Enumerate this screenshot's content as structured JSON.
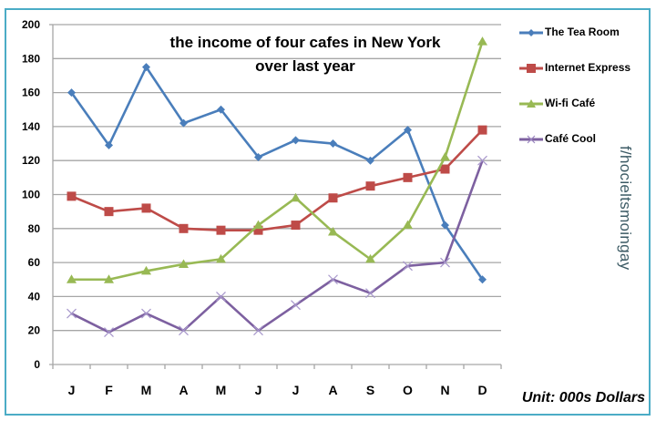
{
  "chart_data": {
    "type": "line",
    "title": "the income of four cafes in New York over last year",
    "title_lines": [
      "the income of four cafes in New York",
      "over last year"
    ],
    "categories": [
      "J",
      "F",
      "M",
      "A",
      "M",
      "J",
      "J",
      "A",
      "S",
      "O",
      "N",
      "D"
    ],
    "xlabel": "",
    "ylabel": "",
    "unit_note": "Unit: 000s Dollars",
    "ylim": [
      0,
      200
    ],
    "yticks": [
      0,
      20,
      40,
      60,
      80,
      100,
      120,
      140,
      160,
      180,
      200
    ],
    "grid": true,
    "legend_position": "right",
    "series": [
      {
        "name": "The Tea Room",
        "color": "#4A7EBB",
        "marker": "diamond",
        "values": [
          160,
          129,
          175,
          142,
          150,
          122,
          132,
          130,
          120,
          138,
          82,
          50
        ]
      },
      {
        "name": "Internet Express",
        "color": "#BE4B48",
        "marker": "square",
        "values": [
          99,
          90,
          92,
          80,
          79,
          79,
          82,
          98,
          105,
          110,
          115,
          138
        ]
      },
      {
        "name": "Wi-fi Café",
        "color": "#98B954",
        "marker": "triangle",
        "values": [
          50,
          50,
          55,
          59,
          62,
          82,
          98,
          78,
          62,
          82,
          122,
          190
        ]
      },
      {
        "name": "Café Cool",
        "color": "#7D60A0",
        "marker": "x",
        "values": [
          30,
          19,
          30,
          20,
          40,
          20,
          35,
          50,
          42,
          58,
          60,
          120
        ]
      }
    ]
  },
  "watermark": "f/hocieltsmoingay",
  "frame_color": "#4BACC6"
}
